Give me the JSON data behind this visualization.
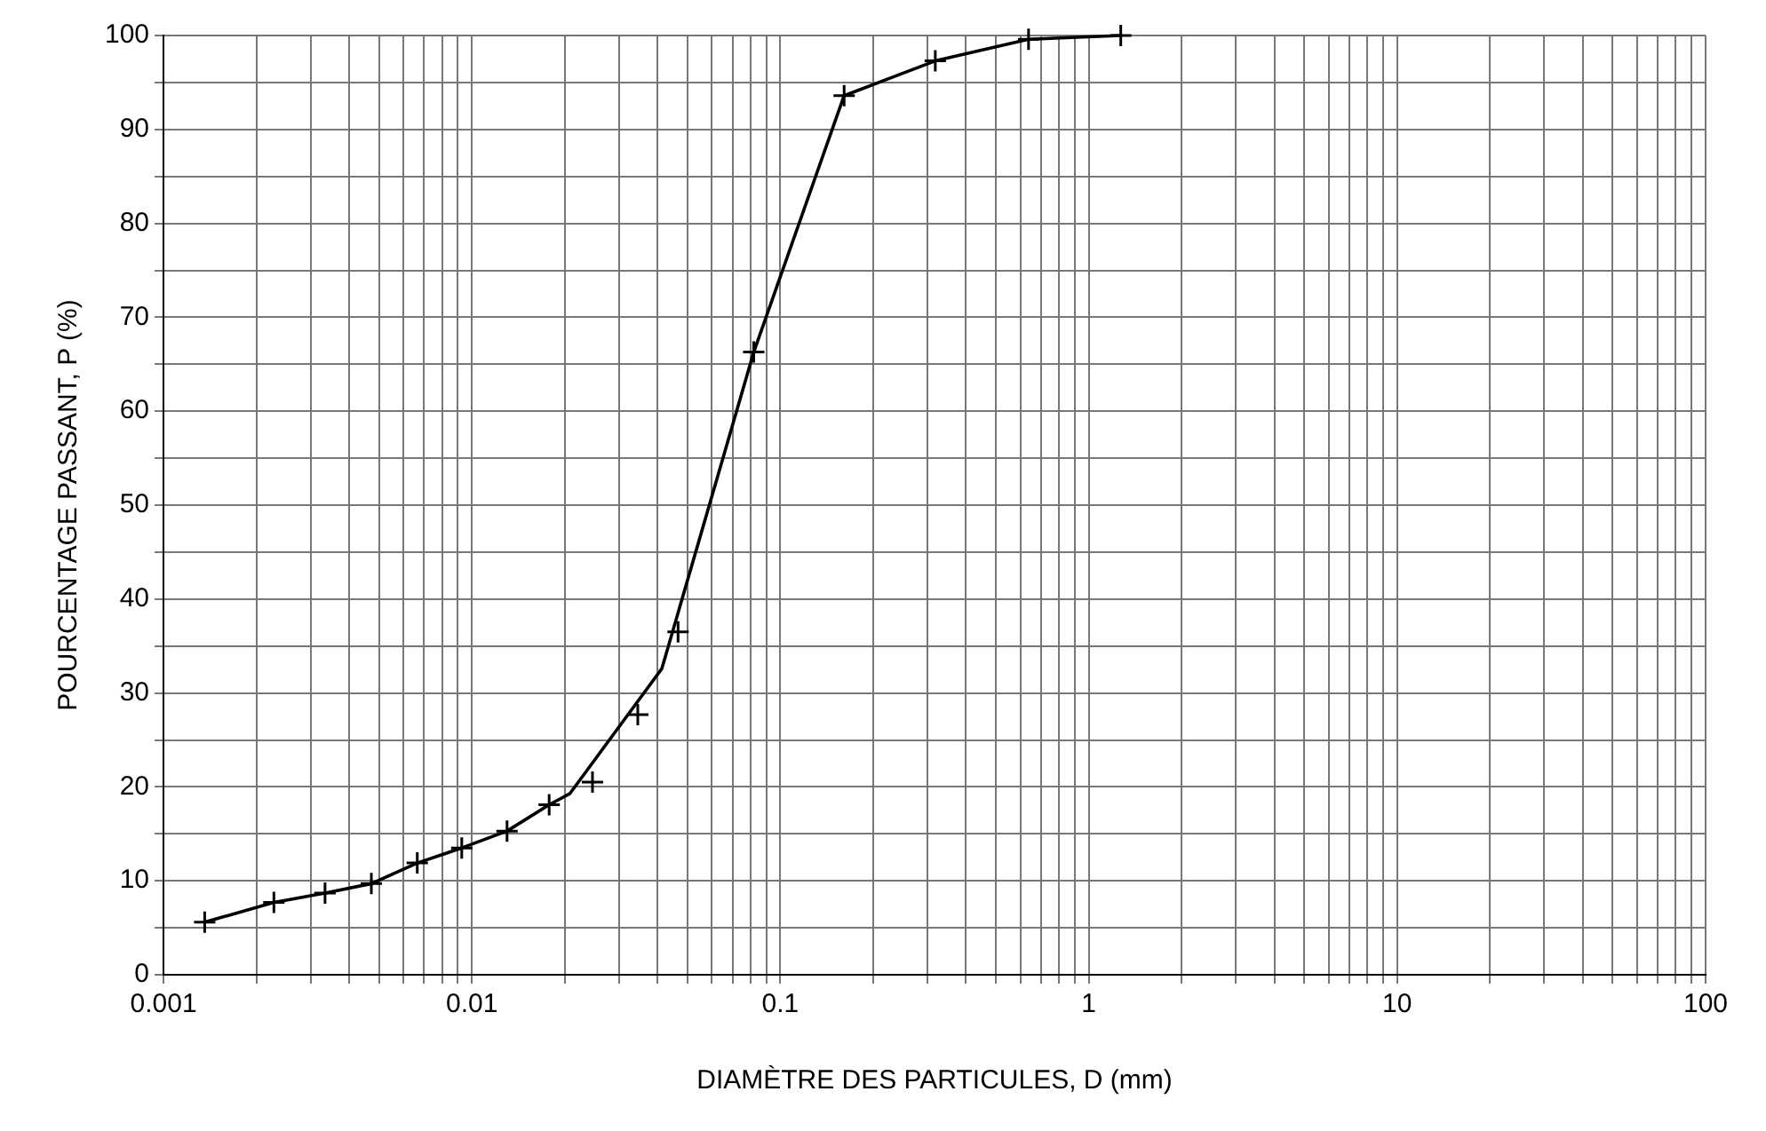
{
  "chart_data": {
    "type": "line",
    "xlabel": "DIAMÈTRE DES PARTICULES, D (mm)",
    "ylabel": "POURCENTAGE PASSANT, P (%)",
    "log": "x",
    "grid": true,
    "legend": false,
    "line_style": "solid",
    "xlim": [
      0.001,
      100
    ],
    "ylim": [
      0,
      100
    ],
    "xticks": [
      0.001,
      {
        "value": 0.002,
        "label": null
      },
      {
        "value": 0.003,
        "label": null
      },
      {
        "value": 0.004,
        "label": null
      },
      {
        "value": 0.005,
        "label": null
      },
      {
        "value": 0.006,
        "label": null
      },
      {
        "value": 0.007,
        "label": null
      },
      {
        "value": 0.008,
        "label": null
      },
      {
        "value": 0.009,
        "label": null
      },
      0.01,
      {
        "value": 0.02,
        "label": null
      },
      {
        "value": 0.03,
        "label": null
      },
      {
        "value": 0.04,
        "label": null
      },
      {
        "value": 0.05,
        "label": null
      },
      {
        "value": 0.06,
        "label": null
      },
      {
        "value": 0.07,
        "label": null
      },
      {
        "value": 0.08,
        "label": null
      },
      {
        "value": 0.09,
        "label": null
      },
      0.1,
      {
        "value": 0.2,
        "label": null
      },
      {
        "value": 0.3,
        "label": null
      },
      {
        "value": 0.4,
        "label": null
      },
      {
        "value": 0.5,
        "label": null
      },
      {
        "value": 0.6,
        "label": null
      },
      {
        "value": 0.7,
        "label": null
      },
      {
        "value": 0.8,
        "label": null
      },
      {
        "value": 0.9,
        "label": null
      },
      1,
      {
        "value": 2,
        "label": null
      },
      {
        "value": 3,
        "label": null
      },
      {
        "value": 4,
        "label": null
      },
      {
        "value": 5,
        "label": null
      },
      {
        "value": 6,
        "label": null
      },
      {
        "value": 7,
        "label": null
      },
      {
        "value": 8,
        "label": null
      },
      {
        "value": 9,
        "label": null
      },
      10,
      {
        "value": 20,
        "label": null
      },
      {
        "value": 30,
        "label": null
      },
      {
        "value": 40,
        "label": null
      },
      {
        "value": 50,
        "label": null
      },
      {
        "value": 60,
        "label": null
      },
      {
        "value": 70,
        "label": null
      },
      {
        "value": 80,
        "label": null
      },
      {
        "value": 90,
        "label": null
      },
      100
    ],
    "yticks": [
      0,
      {
        "value": 5,
        "label": null
      },
      10,
      {
        "value": 15,
        "label": null
      },
      20,
      {
        "value": 25,
        "label": null
      },
      30,
      {
        "value": 35,
        "label": null
      },
      40,
      {
        "value": 45,
        "label": null
      },
      50,
      {
        "value": 55,
        "label": null
      },
      60,
      {
        "value": 65,
        "label": null
      },
      70,
      {
        "value": 75,
        "label": null
      },
      80,
      {
        "value": 85,
        "label": null
      },
      90,
      {
        "value": 95,
        "label": null
      },
      100
    ],
    "series": [
      {
        "type": "scatter",
        "marker": "cross",
        "color": "#000000",
        "x": [
          0.00136,
          0.00228,
          0.00334,
          0.00472,
          0.00665,
          0.00927,
          0.013,
          0.0178,
          0.0246,
          0.0345,
          0.0466,
          0.082,
          0.161,
          0.318,
          0.638,
          1.27
        ],
        "values": [
          5.6,
          7.7,
          8.7,
          9.7,
          11.9,
          13.5,
          15.3,
          18.1,
          20.5,
          27.7,
          36.5,
          66.3,
          93.6,
          97.3,
          99.6,
          100
        ]
      },
      {
        "type": "line",
        "marker": "none",
        "color": "#000000",
        "x": [
          0.00136,
          0.00228,
          0.00334,
          0.00472,
          0.00665,
          0.00927,
          0.013,
          0.0178,
          0.0208,
          0.0413,
          0.082,
          0.161,
          0.318,
          0.638,
          1.27
        ],
        "values": [
          5.6,
          7.7,
          8.7,
          9.7,
          11.9,
          13.5,
          15.3,
          18.1,
          19.3,
          32.6,
          66.3,
          93.6,
          97.3,
          99.6,
          100
        ]
      }
    ]
  }
}
